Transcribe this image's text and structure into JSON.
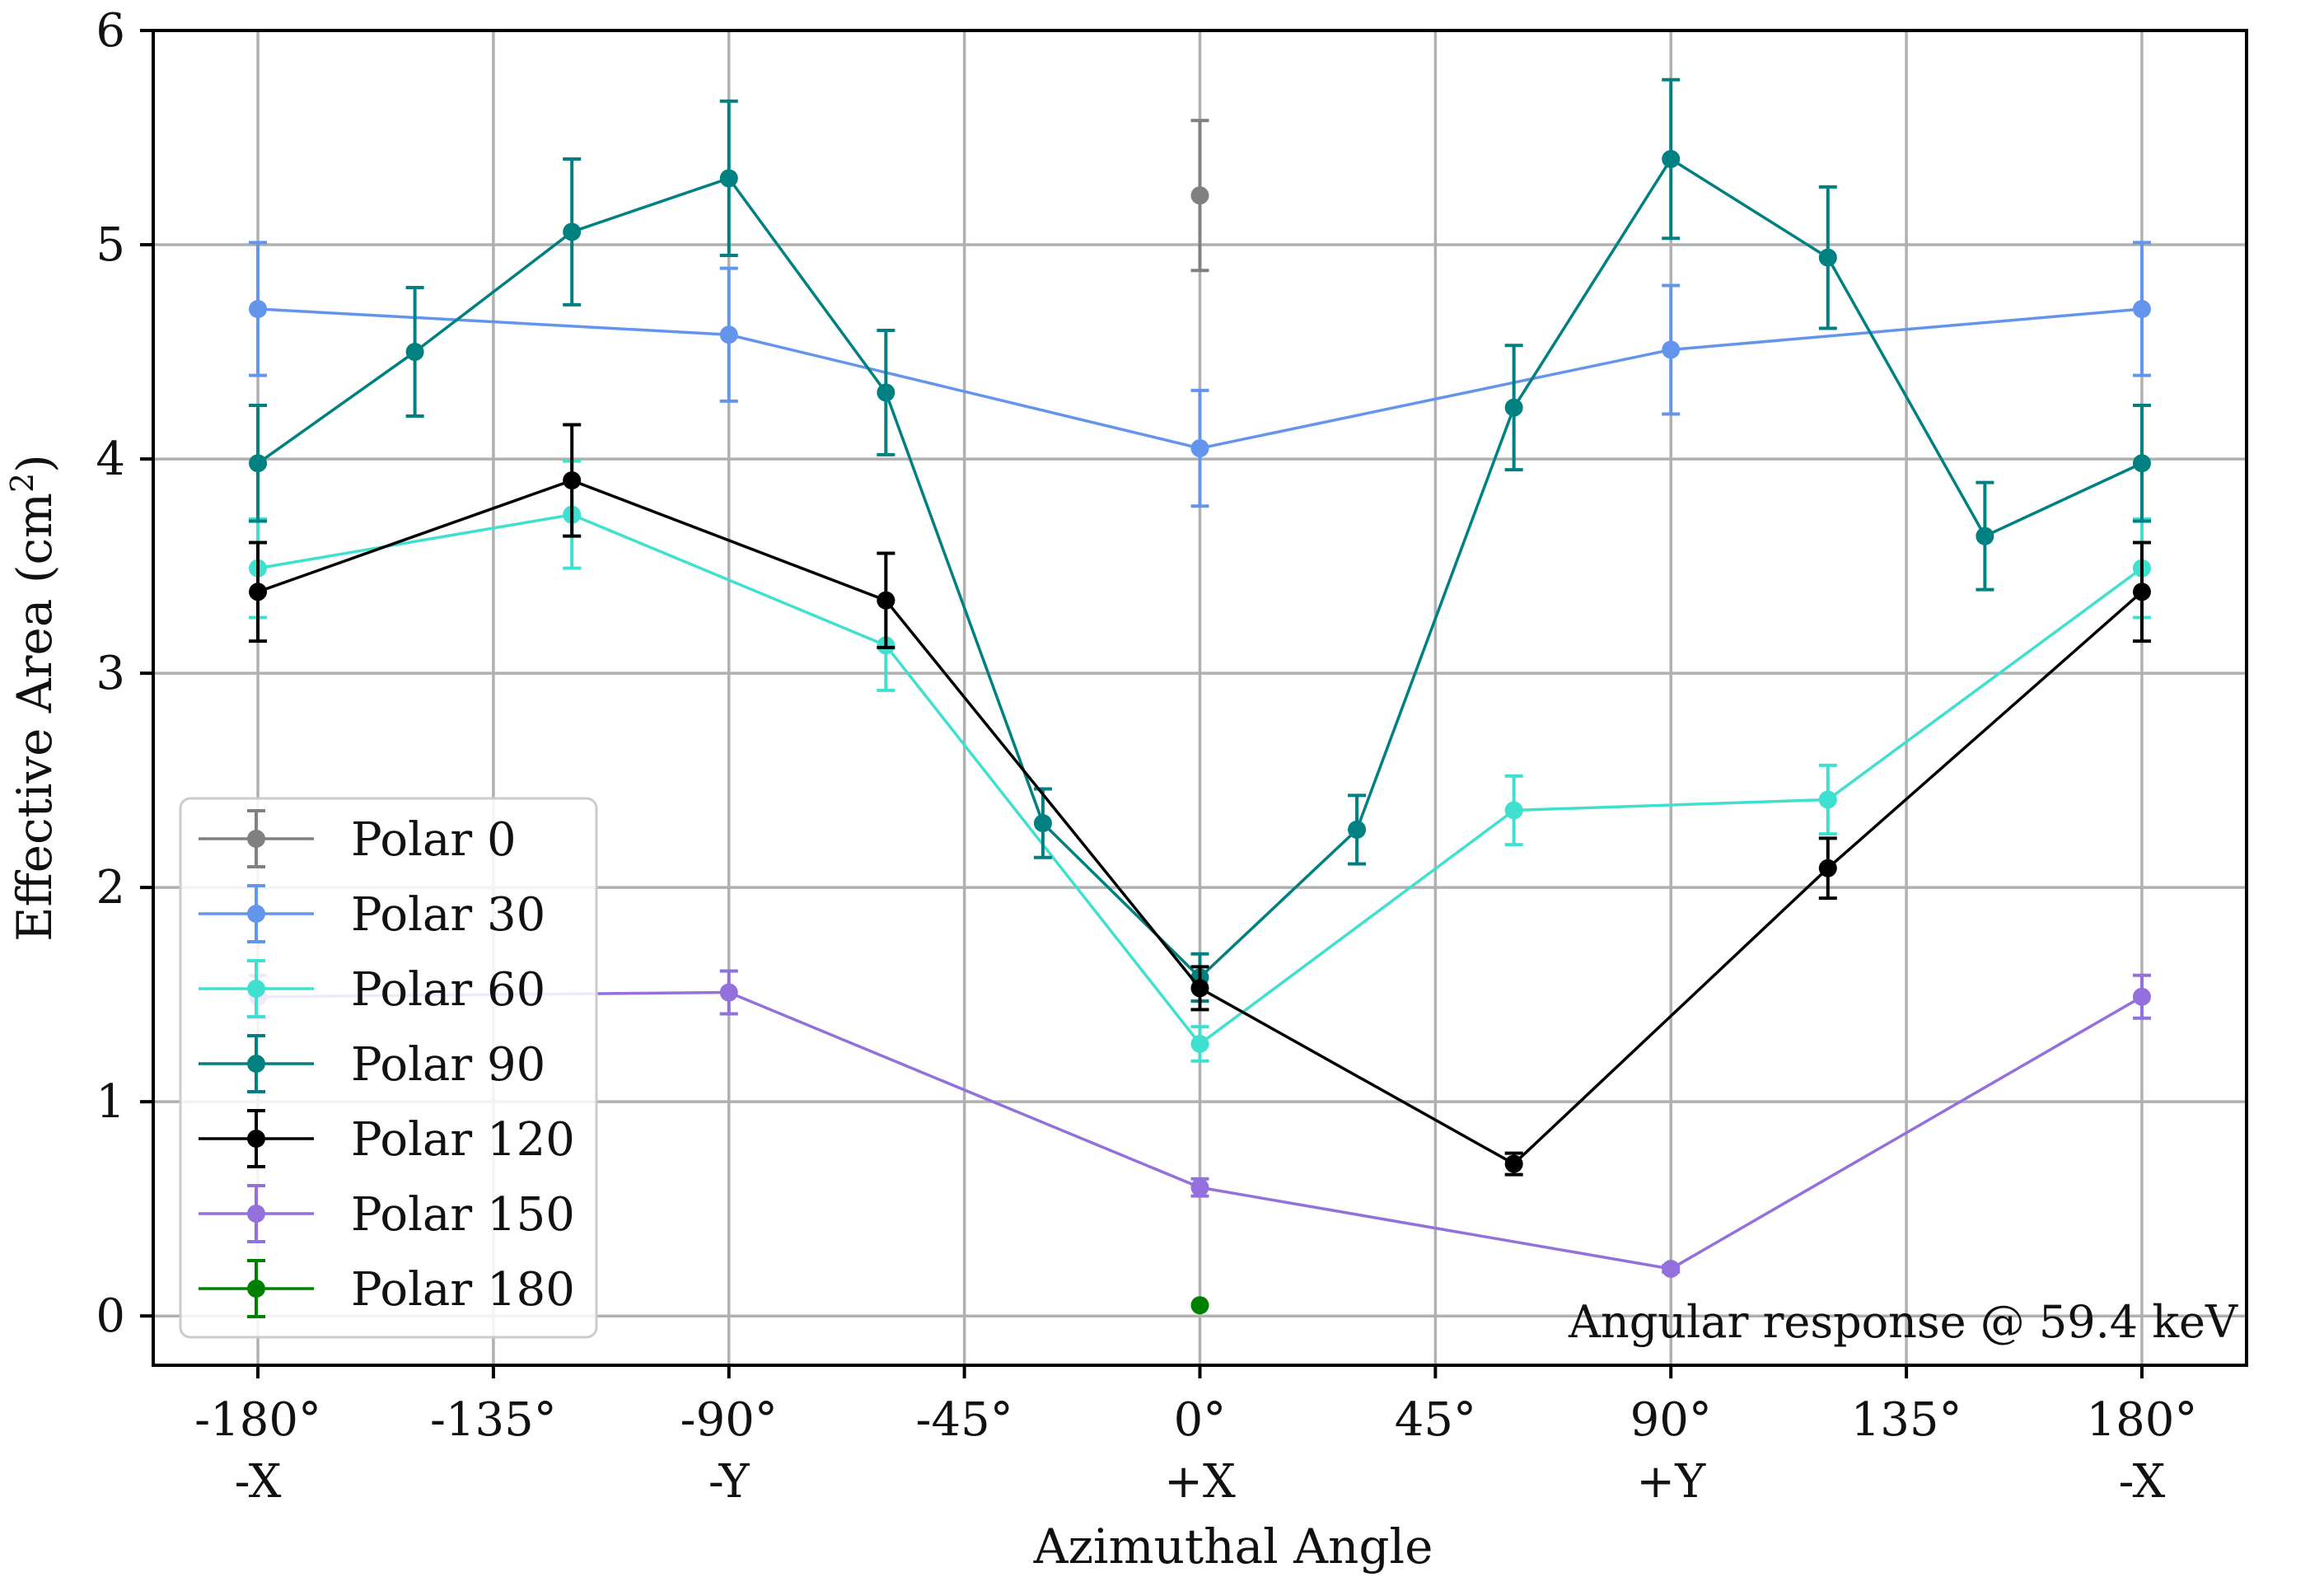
{
  "chart_data": {
    "type": "line",
    "title": "",
    "xlabel": "Azimuthal Angle",
    "ylabel": "Effective Area (cm",
    "ylabel_sup": "2",
    "ylabel_close": ")",
    "xlim": [
      -200,
      200
    ],
    "ylim": [
      -0.23,
      6.0
    ],
    "grid": true,
    "legend_position": "lower-left",
    "x_ticks": [
      {
        "value": -180,
        "line1": "-180°",
        "line2": "-X"
      },
      {
        "value": -135,
        "line1": "-135°",
        "line2": ""
      },
      {
        "value": -90,
        "line1": "-90°",
        "line2": "-Y"
      },
      {
        "value": -45,
        "line1": "-45°",
        "line2": ""
      },
      {
        "value": 0,
        "line1": "0°",
        "line2": "+X"
      },
      {
        "value": 45,
        "line1": "45°",
        "line2": ""
      },
      {
        "value": 90,
        "line1": "90°",
        "line2": "+Y"
      },
      {
        "value": 135,
        "line1": "135°",
        "line2": ""
      },
      {
        "value": 180,
        "line1": "180°",
        "line2": "-X"
      }
    ],
    "y_ticks": [
      {
        "value": 0,
        "label": "0"
      },
      {
        "value": 1,
        "label": "1"
      },
      {
        "value": 2,
        "label": "2"
      },
      {
        "value": 3,
        "label": "3"
      },
      {
        "value": 4,
        "label": "4"
      },
      {
        "value": 5,
        "label": "5"
      },
      {
        "value": 6,
        "label": "6"
      }
    ],
    "annotation": "Angular response @ 59.4 keV",
    "series": [
      {
        "name": "Polar 0",
        "color": "#808080",
        "x": [
          0
        ],
        "y": [
          5.23
        ],
        "err": [
          0.35
        ]
      },
      {
        "name": "Polar 30",
        "color": "#6495ed",
        "x": [
          -180,
          -90,
          0,
          90,
          180
        ],
        "y": [
          4.7,
          4.58,
          4.05,
          4.51,
          4.7
        ],
        "err": [
          0.31,
          0.31,
          0.27,
          0.3,
          0.31
        ]
      },
      {
        "name": "Polar 60",
        "color": "#40e0d0",
        "x": [
          -180,
          -120,
          -60,
          0,
          60,
          120,
          180
        ],
        "y": [
          3.49,
          3.74,
          3.13,
          1.27,
          2.36,
          2.41,
          3.49
        ],
        "err": [
          0.23,
          0.25,
          0.21,
          0.08,
          0.16,
          0.16,
          0.23
        ]
      },
      {
        "name": "Polar 90",
        "color": "#008080",
        "x": [
          -180,
          -150,
          -120,
          -90,
          -60,
          -30,
          0,
          30,
          60,
          90,
          120,
          150,
          180
        ],
        "y": [
          3.98,
          4.5,
          5.06,
          5.31,
          4.31,
          2.3,
          1.58,
          2.27,
          4.24,
          5.4,
          4.94,
          3.64,
          3.98
        ],
        "err": [
          0.27,
          0.3,
          0.34,
          0.36,
          0.29,
          0.16,
          0.11,
          0.16,
          0.29,
          0.37,
          0.33,
          0.25,
          0.27
        ]
      },
      {
        "name": "Polar 120",
        "color": "#000000",
        "x": [
          -180,
          -120,
          -60,
          0,
          60,
          120,
          180
        ],
        "y": [
          3.38,
          3.9,
          3.34,
          1.53,
          0.71,
          2.09,
          3.38
        ],
        "err": [
          0.23,
          0.26,
          0.22,
          0.1,
          0.05,
          0.14,
          0.23
        ]
      },
      {
        "name": "Polar 150",
        "color": "#9370db",
        "x": [
          -180,
          -90,
          0,
          90,
          180
        ],
        "y": [
          1.49,
          1.51,
          0.6,
          0.22,
          1.49
        ],
        "err": [
          0.1,
          0.1,
          0.04,
          0.015,
          0.1
        ]
      },
      {
        "name": "Polar 180",
        "color": "#008000",
        "x": [
          0
        ],
        "y": [
          0.05
        ],
        "err": [
          0.0
        ]
      }
    ]
  }
}
